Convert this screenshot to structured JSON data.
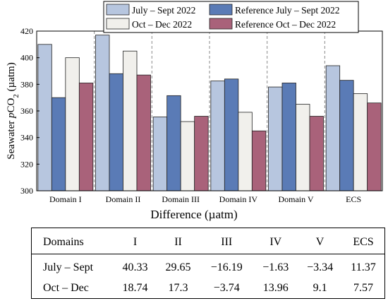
{
  "chart_data": {
    "type": "bar",
    "categories": [
      "Domain I",
      "Domain II",
      "Domain III",
      "Domain IV",
      "Domain V",
      "ECS"
    ],
    "series": [
      {
        "name": "July – Sept 2022",
        "color": "#b7c6df",
        "values": [
          410,
          417,
          355.5,
          382.5,
          378,
          394
        ]
      },
      {
        "name": "Reference July – Sept 2022",
        "color": "#5a7bb6",
        "values": [
          370,
          388,
          371.5,
          384,
          381,
          383
        ]
      },
      {
        "name": "Oct – Dec 2022",
        "color": "#f1f0ec",
        "values": [
          400,
          405,
          352,
          359,
          365,
          373
        ]
      },
      {
        "name": "Reference Oct – Dec 2022",
        "color": "#a9627a",
        "values": [
          381,
          387,
          356,
          345,
          356,
          366
        ]
      }
    ],
    "ylabel_prefix": "Seawater ",
    "ylabel_italic": "p",
    "ylabel_main": "CO",
    "ylabel_sub": "2",
    "ylabel_suffix": " (µatm)",
    "ylim": [
      300,
      420
    ],
    "yticks": [
      "300",
      "320",
      "340",
      "360",
      "380",
      "400",
      "420"
    ],
    "legend_position": "top",
    "separators": "dashed"
  },
  "caption": "Difference (µatm)",
  "table": {
    "header": [
      "Domains",
      "I",
      "II",
      "III",
      "IV",
      "V",
      "ECS"
    ],
    "rows": [
      [
        "July – Sept",
        "40.33",
        "29.65",
        "−16.19",
        "−1.63",
        "−3.34",
        "11.37"
      ],
      [
        "Oct – Dec",
        "18.74",
        "17.3",
        "−3.74",
        "13.96",
        "9.1",
        "7.57"
      ]
    ]
  }
}
